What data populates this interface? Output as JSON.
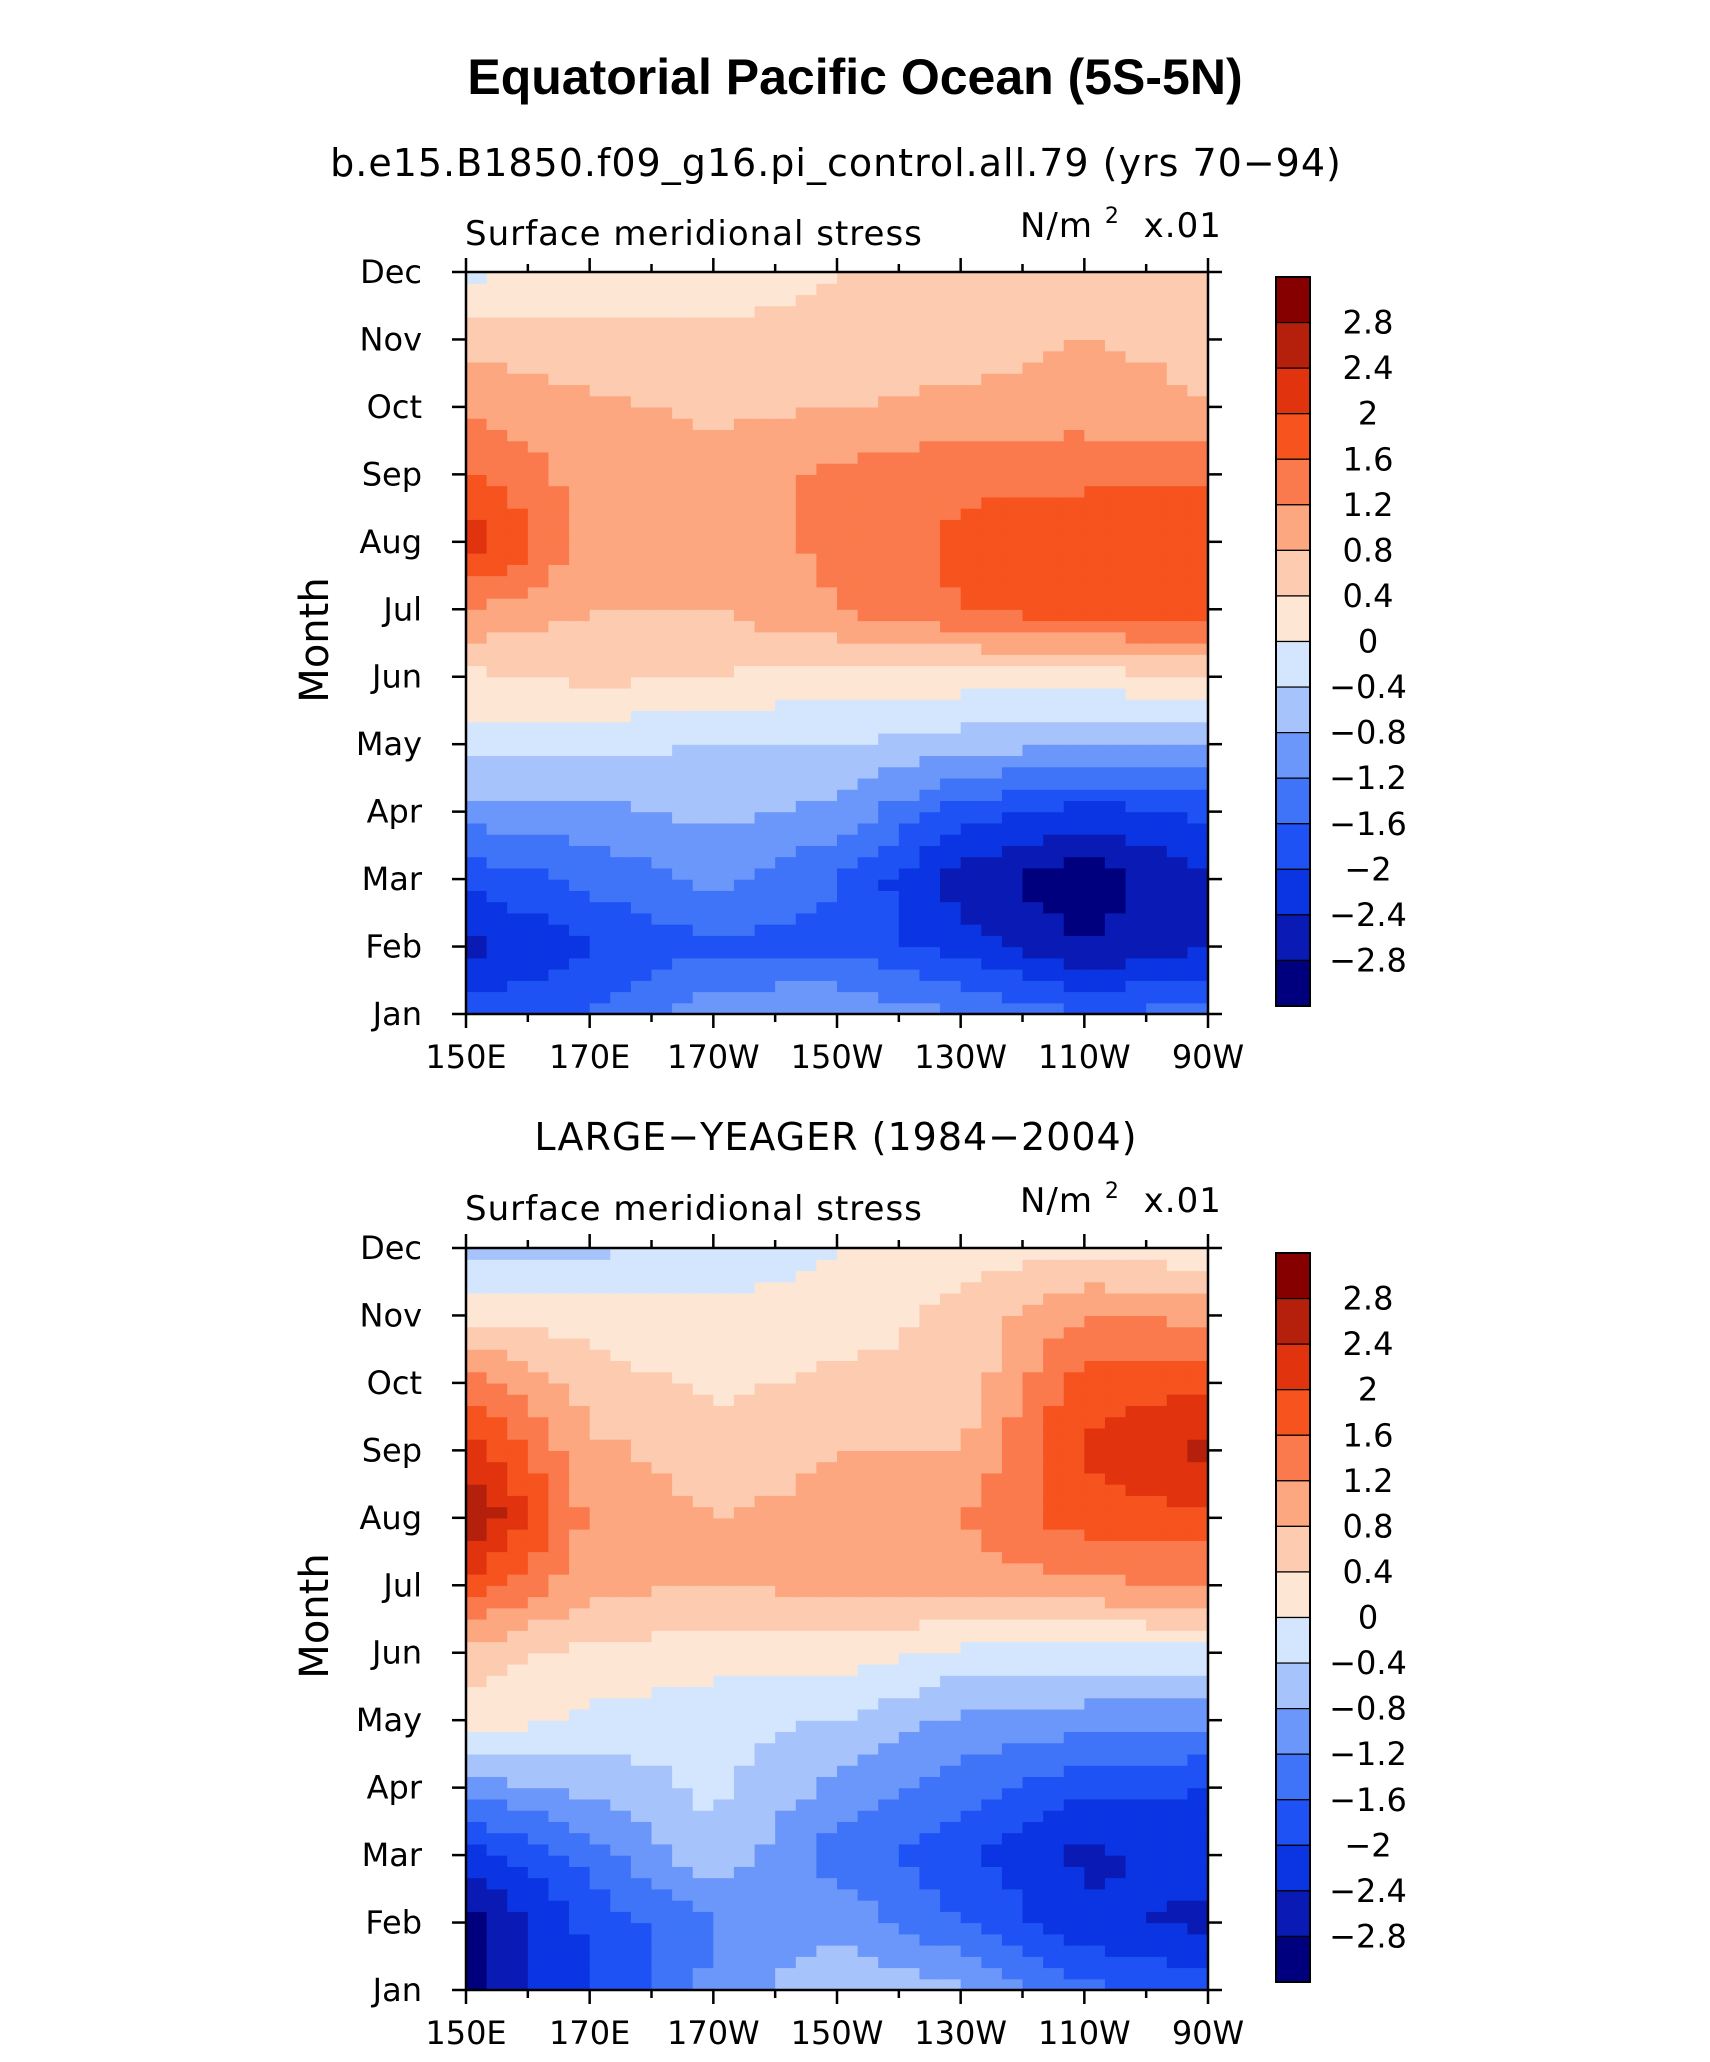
{
  "figure": {
    "title": "Equatorial Pacific Ocean (5S-5N)"
  },
  "chart_data": [
    {
      "type": "heatmap",
      "title": "b.e15.B1850.f09_g16.pi_control.all.79 (yrs 70−94)",
      "left_label": "Surface meridional stress",
      "units_main": "N/m",
      "units_sup": "2",
      "units_scale": "x.01",
      "ylabel": "Month",
      "xlabel": "",
      "x": [
        "150E",
        "170E",
        "170W",
        "150W",
        "130W",
        "110W",
        "90W"
      ],
      "y": [
        "Jan",
        "Feb",
        "Mar",
        "Apr",
        "May",
        "Jun",
        "Jul",
        "Aug",
        "Sep",
        "Oct",
        "Nov",
        "Dec"
      ],
      "z": [
        [
          -1.8,
          -1.6,
          -0.9,
          -0.8,
          -1.2,
          -1.6,
          -1.4
        ],
        [
          -2.6,
          -2.0,
          -1.7,
          -1.7,
          -2.2,
          -2.8,
          -2.4
        ],
        [
          -1.9,
          -1.5,
          -1.1,
          -1.6,
          -2.6,
          -3.1,
          -2.4
        ],
        [
          -1.0,
          -0.9,
          -0.7,
          -0.9,
          -1.8,
          -2.2,
          -1.9
        ],
        [
          -0.2,
          -0.3,
          -0.4,
          -0.4,
          -0.6,
          -0.8,
          -0.7
        ],
        [
          0.3,
          0.5,
          0.4,
          0.2,
          0.2,
          0.2,
          0.4
        ],
        [
          1.2,
          0.8,
          0.8,
          1.2,
          1.6,
          1.9,
          1.8
        ],
        [
          2.3,
          1.1,
          1.0,
          1.3,
          1.7,
          1.9,
          1.9
        ],
        [
          1.7,
          1.0,
          1.0,
          1.3,
          1.5,
          1.5,
          1.5
        ],
        [
          1.1,
          0.9,
          0.7,
          0.8,
          0.9,
          1.0,
          0.8
        ],
        [
          0.7,
          0.5,
          0.5,
          0.5,
          0.6,
          0.8,
          0.7
        ],
        [
          -0.1,
          0.2,
          0.2,
          0.4,
          0.4,
          0.5,
          0.4
        ]
      ],
      "levels": [
        -2.8,
        -2.4,
        -2.0,
        -1.6,
        -1.2,
        -0.8,
        -0.4,
        0,
        0.4,
        0.8,
        1.2,
        1.6,
        2.0,
        2.4,
        2.8
      ],
      "colorbar_labels": [
        "2.8",
        "2.4",
        "2",
        "1.6",
        "1.2",
        "0.8",
        "0.4",
        "0",
        "−0.4",
        "−0.8",
        "−1.2",
        "−1.6",
        "−2",
        "−2.4",
        "−2.8"
      ]
    },
    {
      "type": "heatmap",
      "title": "LARGE−YEAGER (1984−2004)",
      "left_label": "Surface meridional stress",
      "units_main": "N/m",
      "units_sup": "2",
      "units_scale": "x.01",
      "ylabel": "Month",
      "xlabel": "",
      "x": [
        "150E",
        "170E",
        "170W",
        "150W",
        "130W",
        "110W",
        "90W"
      ],
      "y": [
        "Jan",
        "Feb",
        "Mar",
        "Apr",
        "May",
        "Jun",
        "Jul",
        "Aug",
        "Sep",
        "Oct",
        "Nov",
        "Dec"
      ],
      "z": [
        [
          -2.9,
          -2.0,
          -1.1,
          -0.4,
          -0.7,
          -1.5,
          -1.8
        ],
        [
          -3.0,
          -1.9,
          -1.2,
          -0.9,
          -1.6,
          -2.3,
          -2.5
        ],
        [
          -2.3,
          -1.4,
          -0.5,
          -1.4,
          -1.9,
          -2.5,
          -2.2
        ],
        [
          -1.0,
          -0.7,
          -0.3,
          -0.9,
          -1.4,
          -1.9,
          -2.0
        ],
        [
          0.3,
          -0.1,
          -0.3,
          -0.4,
          -0.9,
          -1.0,
          -1.1
        ],
        [
          0.6,
          0.3,
          0.2,
          0.2,
          -0.1,
          -0.2,
          -0.1
        ],
        [
          1.9,
          0.9,
          0.8,
          0.9,
          1.0,
          1.1,
          1.2
        ],
        [
          2.9,
          1.1,
          0.8,
          0.9,
          1.2,
          1.8,
          1.9
        ],
        [
          2.2,
          0.9,
          0.6,
          0.8,
          0.8,
          2.1,
          2.5
        ],
        [
          1.5,
          0.6,
          0.3,
          0.5,
          0.5,
          1.8,
          1.9
        ],
        [
          0.3,
          0.2,
          0.1,
          0.2,
          0.5,
          1.2,
          1.1
        ],
        [
          -0.6,
          -0.5,
          -0.3,
          0.0,
          0.2,
          0.3,
          0.1
        ]
      ],
      "levels": [
        -2.8,
        -2.4,
        -2.0,
        -1.6,
        -1.2,
        -0.8,
        -0.4,
        0,
        0.4,
        0.8,
        1.2,
        1.6,
        2.0,
        2.4,
        2.8
      ],
      "colorbar_labels": [
        "2.8",
        "2.4",
        "2",
        "1.6",
        "1.2",
        "0.8",
        "0.4",
        "0",
        "−0.4",
        "−0.8",
        "−1.2",
        "−1.6",
        "−2",
        "−2.4",
        "−2.8"
      ]
    }
  ],
  "colors": {
    "levels": [
      "#00007f",
      "#0a1bb5",
      "#0b35e3",
      "#1f52f5",
      "#3f74f8",
      "#6c97fa",
      "#a7c3fc",
      "#d4e6fd",
      "#fde6d3",
      "#fccbb0",
      "#fca77f",
      "#fb7a4d",
      "#f6531f",
      "#e2330f",
      "#b4200b",
      "#860000"
    ]
  }
}
